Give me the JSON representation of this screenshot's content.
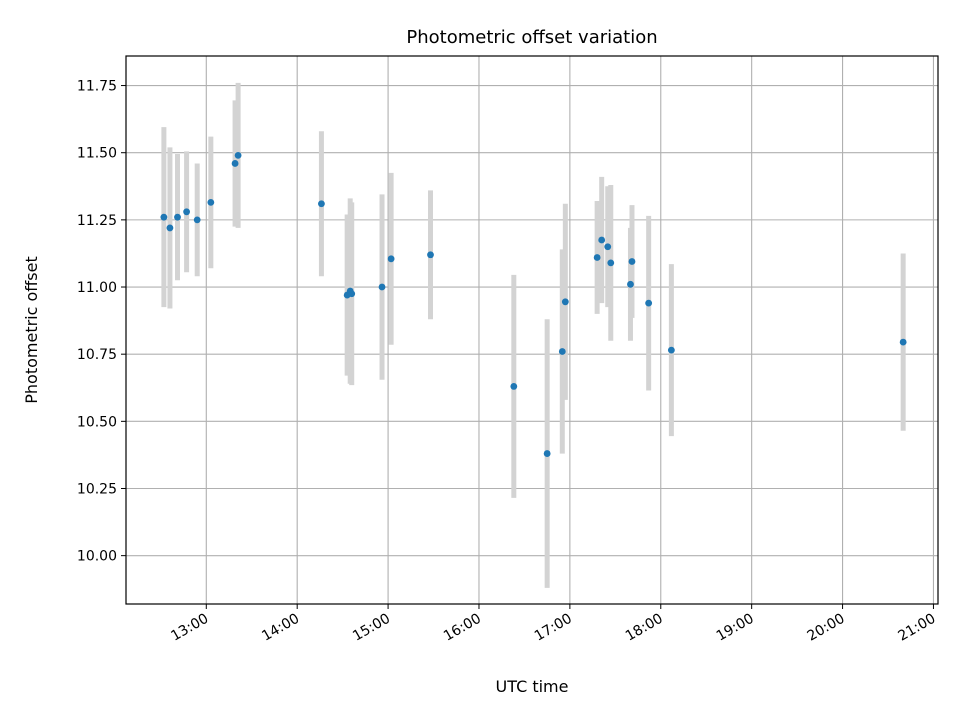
{
  "chart_data": {
    "type": "scatter",
    "title": "Photometric offset variation",
    "xlabel": "UTC time",
    "ylabel": "Photometric offset",
    "x_tick_labels": [
      "13:00",
      "14:00",
      "15:00",
      "16:00",
      "17:00",
      "18:00",
      "19:00",
      "20:00",
      "21:00"
    ],
    "y_tick_labels": [
      "10.00",
      "10.25",
      "10.50",
      "10.75",
      "11.00",
      "11.25",
      "11.50",
      "11.75"
    ],
    "y_ticks": [
      10.0,
      10.25,
      10.5,
      10.75,
      11.0,
      11.25,
      11.5,
      11.75
    ],
    "x_tick_hours": [
      13,
      14,
      15,
      16,
      17,
      18,
      19,
      20,
      21
    ],
    "xlim": [
      "12:07",
      "21:03"
    ],
    "ylim": [
      9.82,
      11.86
    ],
    "grid": true,
    "point_color": "#1f77b4",
    "errorbar_color": "#d3d3d3",
    "points": [
      {
        "x": "12:32",
        "y": 11.26,
        "err": 0.335
      },
      {
        "x": "12:36",
        "y": 11.22,
        "err": 0.3
      },
      {
        "x": "12:41",
        "y": 11.26,
        "err": 0.235
      },
      {
        "x": "12:47",
        "y": 11.28,
        "err": 0.225
      },
      {
        "x": "12:54",
        "y": 11.25,
        "err": 0.21
      },
      {
        "x": "13:03",
        "y": 11.315,
        "err": 0.245
      },
      {
        "x": "13:19",
        "y": 11.46,
        "err": 0.235
      },
      {
        "x": "13:21",
        "y": 11.49,
        "err": 0.27
      },
      {
        "x": "14:16",
        "y": 11.31,
        "err": 0.27
      },
      {
        "x": "14:33",
        "y": 10.97,
        "err": 0.3
      },
      {
        "x": "14:35",
        "y": 10.985,
        "err": 0.345
      },
      {
        "x": "14:36",
        "y": 10.975,
        "err": 0.34
      },
      {
        "x": "14:56",
        "y": 11.0,
        "err": 0.345
      },
      {
        "x": "15:02",
        "y": 11.105,
        "err": 0.32
      },
      {
        "x": "15:28",
        "y": 11.12,
        "err": 0.24
      },
      {
        "x": "16:23",
        "y": 10.63,
        "err": 0.415
      },
      {
        "x": "16:45",
        "y": 10.38,
        "err": 0.5
      },
      {
        "x": "16:55",
        "y": 10.76,
        "err": 0.38
      },
      {
        "x": "16:57",
        "y": 10.945,
        "err": 0.365
      },
      {
        "x": "17:18",
        "y": 11.11,
        "err": 0.21
      },
      {
        "x": "17:21",
        "y": 11.175,
        "err": 0.235
      },
      {
        "x": "17:25",
        "y": 11.15,
        "err": 0.225
      },
      {
        "x": "17:27",
        "y": 11.09,
        "err": 0.29
      },
      {
        "x": "17:40",
        "y": 11.01,
        "err": 0.21
      },
      {
        "x": "17:41",
        "y": 11.095,
        "err": 0.21
      },
      {
        "x": "17:52",
        "y": 10.94,
        "err": 0.325
      },
      {
        "x": "18:07",
        "y": 10.765,
        "err": 0.32
      },
      {
        "x": "20:40",
        "y": 10.795,
        "err": 0.33
      }
    ]
  }
}
